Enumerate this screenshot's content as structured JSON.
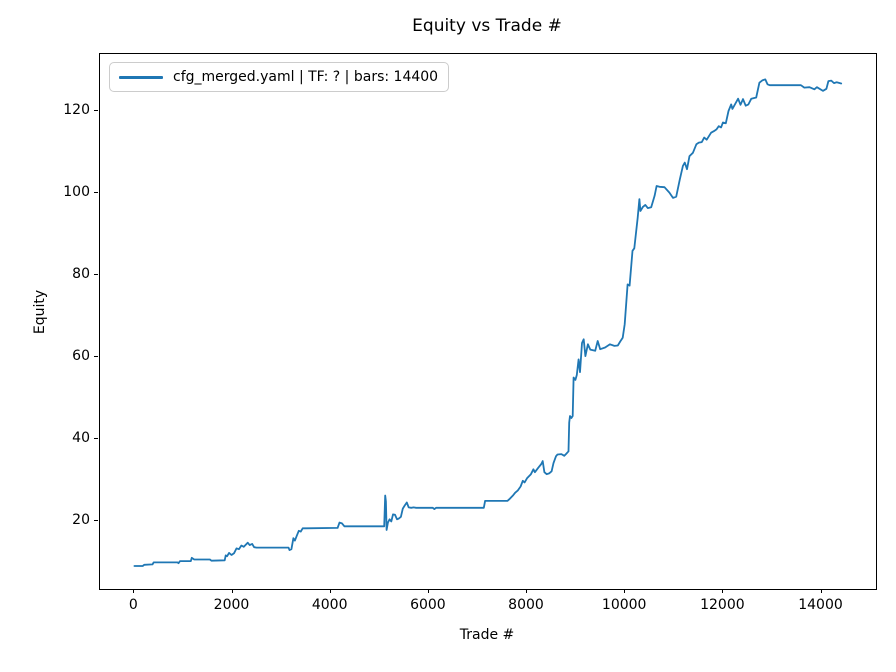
{
  "chart_data": {
    "type": "line",
    "title": "Equity vs Trade #",
    "xlabel": "Trade #",
    "ylabel": "Equity",
    "grid": false,
    "legend_position": "upper left",
    "xlim": [
      -700,
      15110
    ],
    "ylim": [
      3.4,
      133.9
    ],
    "x_ticks": [
      0,
      2000,
      4000,
      6000,
      8000,
      10000,
      12000,
      14000
    ],
    "y_ticks": [
      20,
      40,
      60,
      80,
      100,
      120
    ],
    "series": [
      {
        "name": "cfg_merged.yaml | TF: ? | bars: 14400",
        "color": "#1f77b4",
        "points": [
          [
            0,
            9.0
          ],
          [
            170,
            9.0
          ],
          [
            200,
            9.3
          ],
          [
            370,
            9.4
          ],
          [
            395,
            9.9
          ],
          [
            880,
            9.9
          ],
          [
            900,
            9.7
          ],
          [
            930,
            10.2
          ],
          [
            1150,
            10.2
          ],
          [
            1170,
            11.0
          ],
          [
            1220,
            10.6
          ],
          [
            1540,
            10.6
          ],
          [
            1570,
            10.3
          ],
          [
            1840,
            10.4
          ],
          [
            1860,
            11.6
          ],
          [
            1890,
            11.4
          ],
          [
            1930,
            12.2
          ],
          [
            1980,
            11.7
          ],
          [
            2030,
            12.1
          ],
          [
            2080,
            13.3
          ],
          [
            2130,
            13.1
          ],
          [
            2180,
            14.0
          ],
          [
            2230,
            13.7
          ],
          [
            2310,
            14.7
          ],
          [
            2350,
            14.1
          ],
          [
            2400,
            14.4
          ],
          [
            2440,
            13.6
          ],
          [
            2490,
            13.5
          ],
          [
            3140,
            13.5
          ],
          [
            3160,
            12.9
          ],
          [
            3200,
            13.1
          ],
          [
            3240,
            15.8
          ],
          [
            3270,
            15.2
          ],
          [
            3310,
            16.4
          ],
          [
            3350,
            17.6
          ],
          [
            3390,
            17.4
          ],
          [
            3430,
            18.2
          ],
          [
            3500,
            18.2
          ],
          [
            4140,
            18.3
          ],
          [
            4180,
            19.6
          ],
          [
            4230,
            19.4
          ],
          [
            4280,
            18.7
          ],
          [
            5090,
            18.7
          ],
          [
            5110,
            26.2
          ],
          [
            5125,
            24.8
          ],
          [
            5140,
            17.8
          ],
          [
            5165,
            19.6
          ],
          [
            5200,
            20.4
          ],
          [
            5235,
            19.9
          ],
          [
            5270,
            21.6
          ],
          [
            5310,
            21.5
          ],
          [
            5350,
            20.4
          ],
          [
            5390,
            20.6
          ],
          [
            5430,
            21.0
          ],
          [
            5470,
            23.0
          ],
          [
            5510,
            23.8
          ],
          [
            5550,
            24.5
          ],
          [
            5590,
            23.3
          ],
          [
            5640,
            23.2
          ],
          [
            5690,
            23.3
          ],
          [
            5740,
            23.2
          ],
          [
            6080,
            23.2
          ],
          [
            6110,
            22.9
          ],
          [
            6150,
            23.2
          ],
          [
            7120,
            23.2
          ],
          [
            7145,
            24.9
          ],
          [
            7600,
            24.9
          ],
          [
            7650,
            25.4
          ],
          [
            7720,
            26.3
          ],
          [
            7760,
            26.9
          ],
          [
            7810,
            27.4
          ],
          [
            7870,
            28.4
          ],
          [
            7915,
            29.8
          ],
          [
            7950,
            29.4
          ],
          [
            8000,
            30.4
          ],
          [
            8080,
            31.4
          ],
          [
            8130,
            32.6
          ],
          [
            8160,
            31.9
          ],
          [
            8230,
            33.0
          ],
          [
            8290,
            33.9
          ],
          [
            8320,
            34.6
          ],
          [
            8355,
            31.9
          ],
          [
            8400,
            31.4
          ],
          [
            8450,
            31.6
          ],
          [
            8500,
            32.1
          ],
          [
            8540,
            34.1
          ],
          [
            8590,
            35.8
          ],
          [
            8620,
            36.2
          ],
          [
            8700,
            36.3
          ],
          [
            8760,
            35.9
          ],
          [
            8800,
            36.4
          ],
          [
            8845,
            37.0
          ],
          [
            8860,
            44.0
          ],
          [
            8875,
            45.6
          ],
          [
            8905,
            45.1
          ],
          [
            8930,
            45.6
          ],
          [
            8950,
            55.0
          ],
          [
            8985,
            54.4
          ],
          [
            9015,
            55.6
          ],
          [
            9050,
            59.4
          ],
          [
            9080,
            56.3
          ],
          [
            9120,
            63.4
          ],
          [
            9155,
            64.3
          ],
          [
            9190,
            60.2
          ],
          [
            9240,
            63.1
          ],
          [
            9290,
            61.8
          ],
          [
            9390,
            61.5
          ],
          [
            9440,
            63.9
          ],
          [
            9490,
            61.9
          ],
          [
            9590,
            62.3
          ],
          [
            9690,
            63.1
          ],
          [
            9780,
            62.7
          ],
          [
            9850,
            62.8
          ],
          [
            9900,
            63.8
          ],
          [
            9950,
            64.7
          ],
          [
            9990,
            68.0
          ],
          [
            10050,
            77.7
          ],
          [
            10090,
            77.4
          ],
          [
            10150,
            85.9
          ],
          [
            10185,
            86.5
          ],
          [
            10255,
            94.0
          ],
          [
            10290,
            98.5
          ],
          [
            10310,
            95.6
          ],
          [
            10360,
            96.6
          ],
          [
            10410,
            97.1
          ],
          [
            10460,
            96.3
          ],
          [
            10530,
            96.5
          ],
          [
            10600,
            99.3
          ],
          [
            10640,
            101.7
          ],
          [
            10700,
            101.5
          ],
          [
            10800,
            101.4
          ],
          [
            10900,
            100.1
          ],
          [
            10975,
            98.8
          ],
          [
            11040,
            99.1
          ],
          [
            11110,
            103.2
          ],
          [
            11175,
            106.6
          ],
          [
            11215,
            107.4
          ],
          [
            11260,
            105.8
          ],
          [
            11310,
            109.0
          ],
          [
            11380,
            109.8
          ],
          [
            11450,
            111.9
          ],
          [
            11500,
            112.3
          ],
          [
            11560,
            112.4
          ],
          [
            11610,
            113.5
          ],
          [
            11660,
            113.0
          ],
          [
            11750,
            114.7
          ],
          [
            11810,
            115.1
          ],
          [
            11860,
            115.5
          ],
          [
            11905,
            116.3
          ],
          [
            11955,
            116.0
          ],
          [
            11990,
            117.2
          ],
          [
            12050,
            117.0
          ],
          [
            12105,
            120.0
          ],
          [
            12160,
            121.6
          ],
          [
            12185,
            120.5
          ],
          [
            12250,
            121.9
          ],
          [
            12300,
            123.0
          ],
          [
            12350,
            121.5
          ],
          [
            12400,
            122.9
          ],
          [
            12455,
            121.3
          ],
          [
            12510,
            121.6
          ],
          [
            12570,
            123.0
          ],
          [
            12670,
            123.3
          ],
          [
            12735,
            126.9
          ],
          [
            12800,
            127.5
          ],
          [
            12855,
            127.7
          ],
          [
            12900,
            126.5
          ],
          [
            12945,
            126.3
          ],
          [
            13580,
            126.3
          ],
          [
            13650,
            125.7
          ],
          [
            13755,
            125.8
          ],
          [
            13855,
            125.3
          ],
          [
            13905,
            125.8
          ],
          [
            14030,
            124.9
          ],
          [
            14100,
            125.4
          ],
          [
            14140,
            127.3
          ],
          [
            14200,
            127.4
          ],
          [
            14255,
            126.8
          ],
          [
            14310,
            127.0
          ],
          [
            14400,
            126.7
          ]
        ]
      }
    ]
  },
  "legend": {
    "label": "cfg_merged.yaml | TF: ? | bars: 14400",
    "line_color": "#1f77b4"
  },
  "colors": {
    "series": "#1f77b4",
    "spine": "#000000",
    "legend_border": "#cccccc",
    "background": "#ffffff"
  }
}
